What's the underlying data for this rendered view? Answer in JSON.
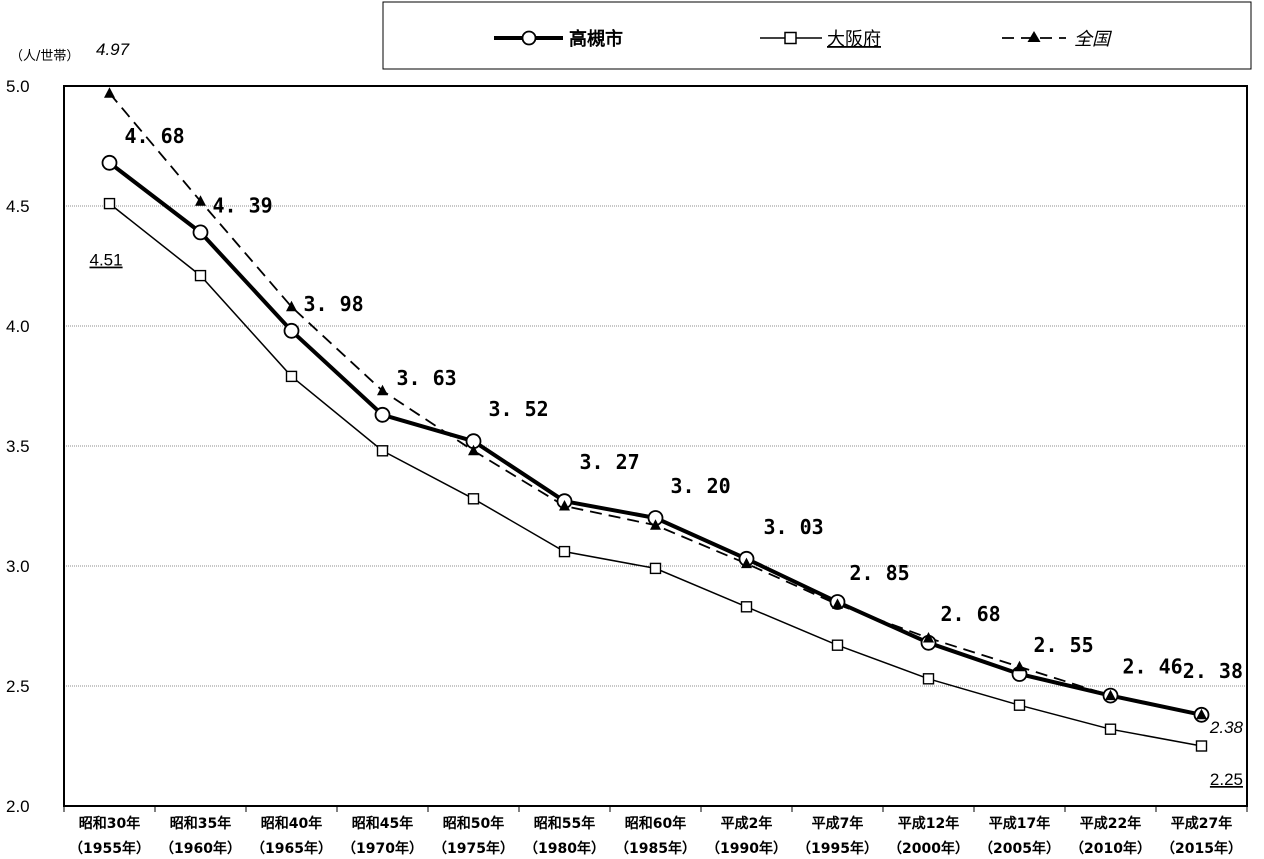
{
  "chart_data": {
    "type": "line",
    "unit_label": "（人/世帯）",
    "ylim": [
      2.0,
      5.0
    ],
    "yticks": [
      "2.0",
      "2.5",
      "3.0",
      "3.5",
      "4.0",
      "4.5",
      "5.0"
    ],
    "grid": true,
    "legend_position": "top",
    "categories": [
      [
        "昭和30年",
        "（1955年）"
      ],
      [
        "昭和35年",
        "（1960年）"
      ],
      [
        "昭和40年",
        "（1965年）"
      ],
      [
        "昭和45年",
        "（1970年）"
      ],
      [
        "昭和50年",
        "（1975年）"
      ],
      [
        "昭和55年",
        "（1980年）"
      ],
      [
        "昭和60年",
        "（1985年）"
      ],
      [
        "平成2年",
        "（1990年）"
      ],
      [
        "平成7年",
        "（1995年）"
      ],
      [
        "平成12年",
        "（2000年）"
      ],
      [
        "平成17年",
        "（2005年）"
      ],
      [
        "平成22年",
        "（2010年）"
      ],
      [
        "平成27年",
        "（2015年）"
      ]
    ],
    "series": [
      {
        "name": "高槻市",
        "marker": "circle",
        "line": "solid-thick",
        "values": [
          4.68,
          4.39,
          3.98,
          3.63,
          3.52,
          3.27,
          3.2,
          3.03,
          2.85,
          2.68,
          2.55,
          2.46,
          2.38
        ],
        "labels": [
          "4. 68",
          "4. 39",
          "3. 98",
          "3. 63",
          "3. 52",
          "3. 27",
          "3. 20",
          "3. 03",
          "2. 85",
          "2. 68",
          "2. 55",
          "2. 46",
          "2. 38"
        ]
      },
      {
        "name": "大阪府",
        "marker": "square",
        "line": "solid-thin",
        "values": [
          4.51,
          4.21,
          3.79,
          3.48,
          3.28,
          3.06,
          2.99,
          2.83,
          2.67,
          2.53,
          2.42,
          2.32,
          2.25
        ],
        "labels": [
          "4.51",
          "2.25"
        ]
      },
      {
        "name": "全国",
        "marker": "triangle",
        "line": "dashed",
        "values": [
          4.97,
          4.52,
          4.08,
          3.73,
          3.48,
          3.25,
          3.17,
          3.01,
          2.84,
          2.7,
          2.58,
          2.46,
          2.38
        ],
        "labels": [
          "4.97",
          "2.38"
        ]
      }
    ]
  }
}
